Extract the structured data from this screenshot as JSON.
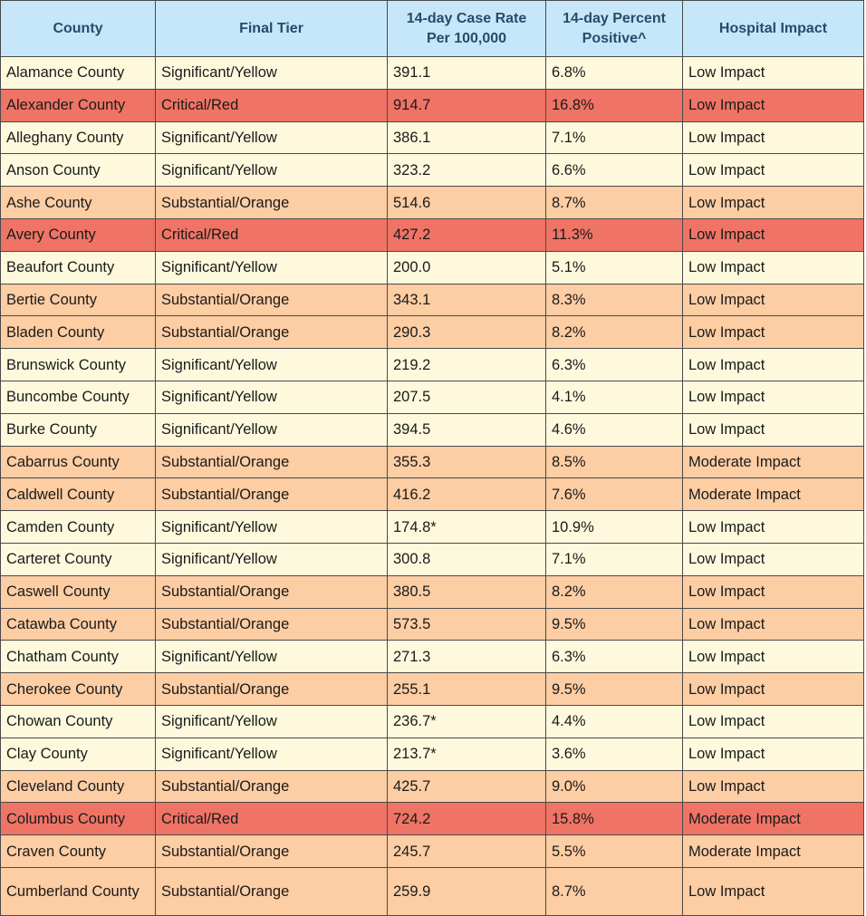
{
  "table": {
    "headers": {
      "county": "County",
      "tier": "Final Tier",
      "rate_line1": "14-day Case Rate",
      "rate_line2": "Per 100,000",
      "pct_line1": "14-day Percent",
      "pct_line2": "Positive^",
      "hospital": "Hospital Impact"
    },
    "tier_colors": {
      "yellow": "#fef9dd",
      "orange": "#fdcda4",
      "red": "#ef7466",
      "header": "#c6e7f9"
    },
    "rows": [
      {
        "county": "Alamance County",
        "tier": "Significant/Yellow",
        "rate": "391.1",
        "pct": "6.8%",
        "hospital": "Low Impact",
        "color": "yellow"
      },
      {
        "county": "Alexander County",
        "tier": "Critical/Red",
        "rate": "914.7",
        "pct": "16.8%",
        "hospital": "Low Impact",
        "color": "red"
      },
      {
        "county": "Alleghany County",
        "tier": "Significant/Yellow",
        "rate": "386.1",
        "pct": "7.1%",
        "hospital": "Low Impact",
        "color": "yellow"
      },
      {
        "county": "Anson County",
        "tier": "Significant/Yellow",
        "rate": "323.2",
        "pct": "6.6%",
        "hospital": "Low Impact",
        "color": "yellow"
      },
      {
        "county": "Ashe County",
        "tier": "Substantial/Orange",
        "rate": "514.6",
        "pct": "8.7%",
        "hospital": "Low Impact",
        "color": "orange"
      },
      {
        "county": "Avery County",
        "tier": "Critical/Red",
        "rate": "427.2",
        "pct": "11.3%",
        "hospital": "Low Impact",
        "color": "red"
      },
      {
        "county": "Beaufort County",
        "tier": "Significant/Yellow",
        "rate": "200.0",
        "pct": "5.1%",
        "hospital": "Low Impact",
        "color": "yellow"
      },
      {
        "county": "Bertie County",
        "tier": "Substantial/Orange",
        "rate": "343.1",
        "pct": "8.3%",
        "hospital": "Low Impact",
        "color": "orange"
      },
      {
        "county": "Bladen County",
        "tier": "Substantial/Orange",
        "rate": "290.3",
        "pct": "8.2%",
        "hospital": "Low Impact",
        "color": "orange"
      },
      {
        "county": "Brunswick County",
        "tier": "Significant/Yellow",
        "rate": "219.2",
        "pct": "6.3%",
        "hospital": "Low Impact",
        "color": "yellow"
      },
      {
        "county": "Buncombe County",
        "tier": "Significant/Yellow",
        "rate": "207.5",
        "pct": "4.1%",
        "hospital": "Low Impact",
        "color": "yellow"
      },
      {
        "county": "Burke County",
        "tier": "Significant/Yellow",
        "rate": "394.5",
        "pct": "4.6%",
        "hospital": "Low Impact",
        "color": "yellow"
      },
      {
        "county": "Cabarrus County",
        "tier": "Substantial/Orange",
        "rate": "355.3",
        "pct": "8.5%",
        "hospital": "Moderate Impact",
        "color": "orange"
      },
      {
        "county": "Caldwell County",
        "tier": "Substantial/Orange",
        "rate": "416.2",
        "pct": "7.6%",
        "hospital": "Moderate Impact",
        "color": "orange"
      },
      {
        "county": "Camden County",
        "tier": "Significant/Yellow",
        "rate": "174.8*",
        "pct": "10.9%",
        "hospital": "Low Impact",
        "color": "yellow"
      },
      {
        "county": "Carteret County",
        "tier": "Significant/Yellow",
        "rate": "300.8",
        "pct": "7.1%",
        "hospital": "Low Impact",
        "color": "yellow"
      },
      {
        "county": "Caswell County",
        "tier": "Substantial/Orange",
        "rate": "380.5",
        "pct": "8.2%",
        "hospital": "Low Impact",
        "color": "orange"
      },
      {
        "county": "Catawba County",
        "tier": "Substantial/Orange",
        "rate": "573.5",
        "pct": "9.5%",
        "hospital": "Low Impact",
        "color": "orange"
      },
      {
        "county": "Chatham County",
        "tier": "Significant/Yellow",
        "rate": "271.3",
        "pct": "6.3%",
        "hospital": "Low Impact",
        "color": "yellow"
      },
      {
        "county": "Cherokee County",
        "tier": "Substantial/Orange",
        "rate": "255.1",
        "pct": "9.5%",
        "hospital": "Low Impact",
        "color": "orange"
      },
      {
        "county": "Chowan County",
        "tier": "Significant/Yellow",
        "rate": "236.7*",
        "pct": "4.4%",
        "hospital": "Low Impact",
        "color": "yellow"
      },
      {
        "county": "Clay County",
        "tier": "Significant/Yellow",
        "rate": "213.7*",
        "pct": "3.6%",
        "hospital": "Low Impact",
        "color": "yellow"
      },
      {
        "county": "Cleveland County",
        "tier": "Substantial/Orange",
        "rate": "425.7",
        "pct": "9.0%",
        "hospital": "Low Impact",
        "color": "orange"
      },
      {
        "county": "Columbus County",
        "tier": "Critical/Red",
        "rate": "724.2",
        "pct": "15.8%",
        "hospital": "Moderate Impact",
        "color": "red"
      },
      {
        "county": "Craven County",
        "tier": "Substantial/Orange",
        "rate": "245.7",
        "pct": "5.5%",
        "hospital": "Moderate Impact",
        "color": "orange"
      },
      {
        "county": "Cumberland County",
        "tier": "Substantial/Orange",
        "rate": "259.9",
        "pct": "8.7%",
        "hospital": "Low Impact",
        "color": "orange"
      }
    ]
  }
}
